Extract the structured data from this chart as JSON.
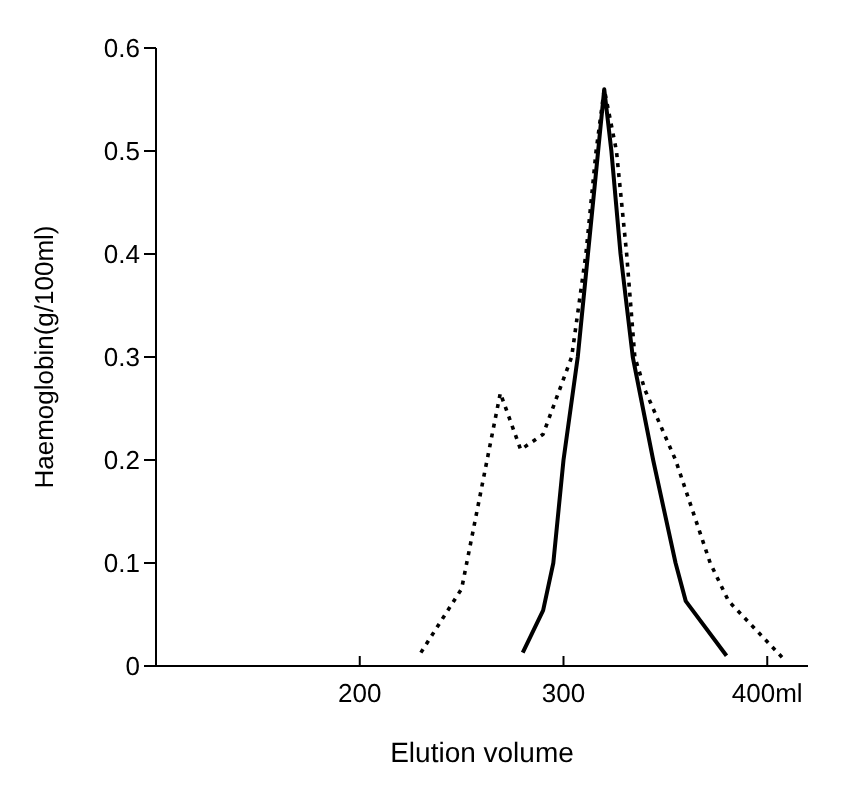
{
  "chart_data": {
    "type": "line",
    "xlabel": "Elution volume",
    "ylabel": "Haemoglobin(g/100ml)",
    "xlim": [
      100,
      420
    ],
    "xticks": [
      200,
      300,
      {
        "value": 400,
        "label": "400ml"
      }
    ],
    "ylim": [
      0,
      0.6
    ],
    "yticks": [
      0,
      0.1,
      0.2,
      0.3,
      0.4,
      0.5,
      0.6
    ],
    "marker": "none",
    "series": [
      {
        "color": "#000000",
        "line_style": "dotted",
        "x": [
          230,
          250,
          269,
          279,
          290,
          304,
          311,
          316,
          320,
          326,
          331,
          335,
          340,
          355,
          372,
          381,
          408
        ],
        "values": [
          0.013,
          0.075,
          0.265,
          0.21,
          0.225,
          0.3,
          0.4,
          0.5,
          0.56,
          0.5,
          0.4,
          0.3,
          0.268,
          0.2,
          0.1,
          0.063,
          0.007
        ]
      },
      {
        "color": "#000000",
        "line_style": "solid",
        "x": [
          280,
          290,
          295,
          300,
          307,
          312,
          317,
          320,
          323.5,
          328,
          334,
          344,
          355,
          360,
          380
        ],
        "values": [
          0.013,
          0.054,
          0.1,
          0.2,
          0.3,
          0.4,
          0.5,
          0.56,
          0.5,
          0.4,
          0.3,
          0.2,
          0.1,
          0.063,
          0.01
        ]
      }
    ]
  }
}
